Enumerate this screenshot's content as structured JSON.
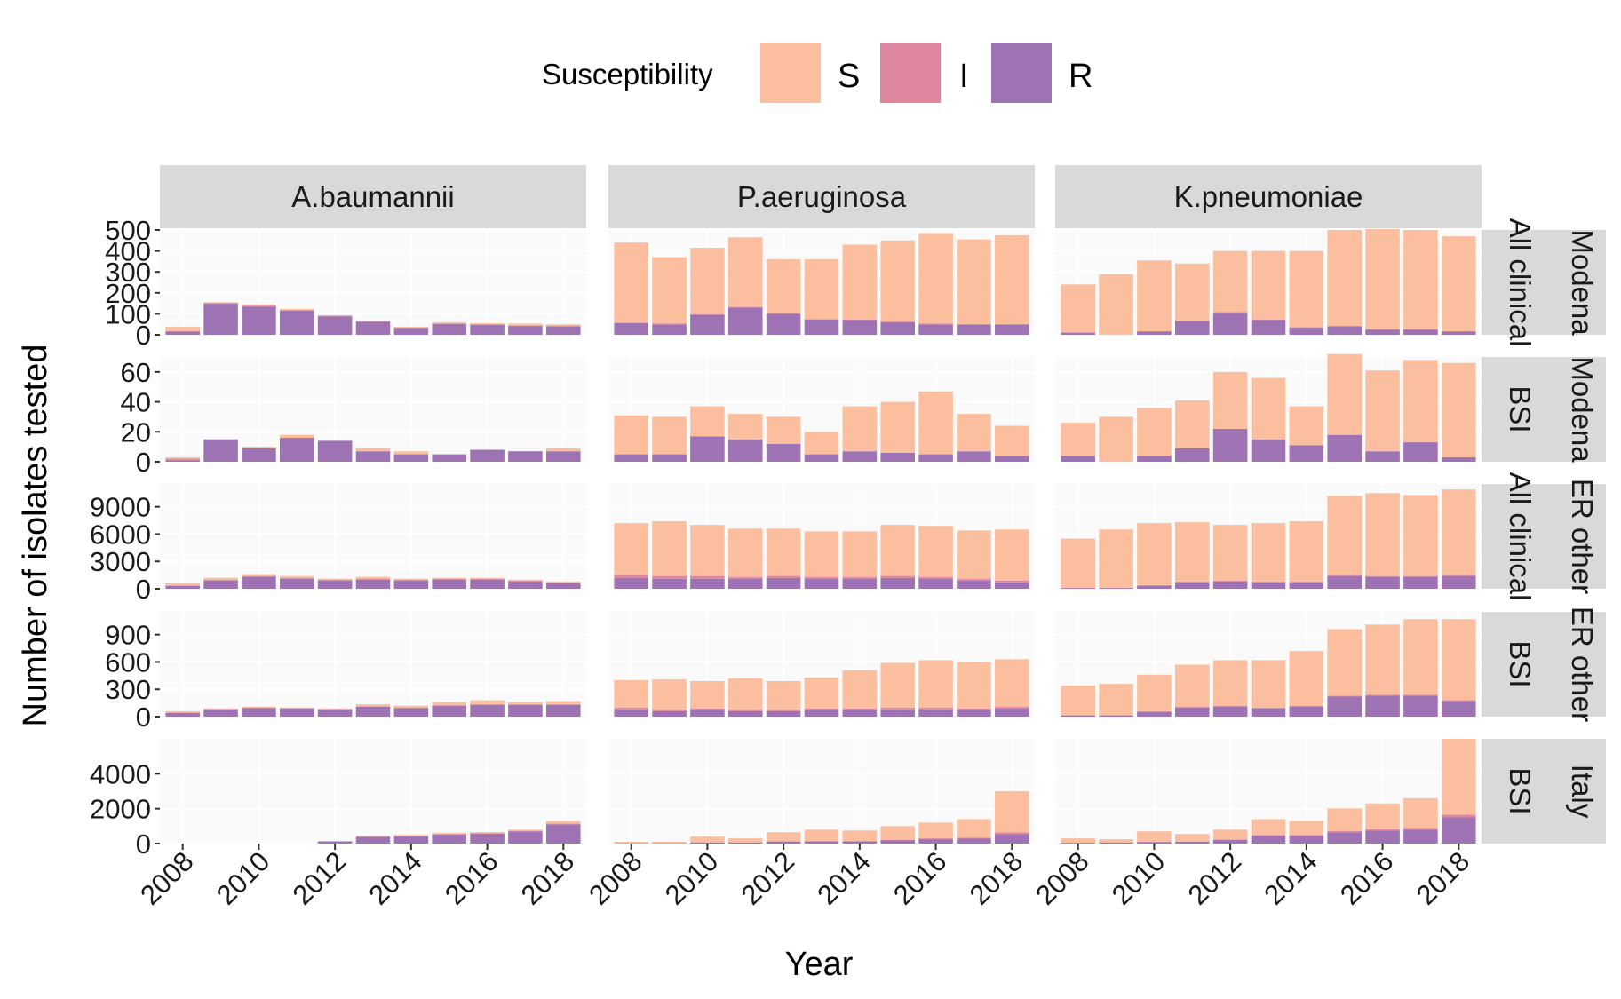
{
  "chart_data": {
    "type": "bar",
    "stacked": true,
    "facets": "grid",
    "xlabel": "Year",
    "ylabel": "Number of isolates tested",
    "x": [
      2008,
      2009,
      2010,
      2011,
      2012,
      2013,
      2014,
      2015,
      2016,
      2017,
      2018
    ],
    "x_ticks": [
      2008,
      2010,
      2012,
      2014,
      2016,
      2018
    ],
    "legend": {
      "title": "Susceptibility",
      "position": "top",
      "items": [
        {
          "key": "S",
          "label": "S",
          "color": "#fbbf9f"
        },
        {
          "key": "I",
          "label": "I",
          "color": "#de85a0"
        },
        {
          "key": "R",
          "label": "R",
          "color": "#9e73b3"
        }
      ]
    },
    "columns": [
      "A.baumannii",
      "P.aeruginosa",
      "K.pneumoniae"
    ],
    "rows": [
      {
        "strip": "Modena All clinical",
        "strip_outer": "Modena",
        "strip_inner": "All clinical",
        "ylim": [
          0,
          500
        ],
        "yticks": [
          0,
          100,
          200,
          300,
          400,
          500
        ],
        "ytick_labels": [
          "0",
          "100",
          "200",
          "300",
          "400",
          "500"
        ],
        "panels": [
          {
            "R": [
              15,
              148,
              135,
              115,
              88,
              62,
              33,
              52,
              48,
              42,
              40
            ],
            "I": [
              3,
              4,
              4,
              3,
              3,
              2,
              2,
              2,
              2,
              2,
              2
            ],
            "S": [
              20,
              3,
              6,
              5,
              2,
              2,
              3,
              6,
              5,
              9,
              8
            ]
          },
          {
            "R": [
              55,
              50,
              95,
              130,
              100,
              72,
              70,
              60,
              50,
              48,
              48
            ],
            "I": [
              3,
              3,
              3,
              3,
              3,
              3,
              3,
              3,
              3,
              3,
              3
            ],
            "S": [
              382,
              317,
              317,
              332,
              257,
              285,
              357,
              387,
              432,
              404,
              424
            ]
          },
          {
            "R": [
              10,
              0,
              15,
              65,
              105,
              70,
              35,
              40,
              25,
              25,
              15
            ],
            "I": [
              2,
              1,
              2,
              3,
              3,
              3,
              2,
              2,
              2,
              2,
              2
            ],
            "S": [
              228,
              288,
              338,
              272,
              292,
              327,
              363,
              458,
              478,
              473,
              453
            ]
          }
        ]
      },
      {
        "strip": "Modena BSI",
        "strip_outer": "Modena",
        "strip_inner": "BSI",
        "ylim": [
          0,
          70
        ],
        "yticks": [
          0,
          20,
          40,
          60
        ],
        "ytick_labels": [
          "0",
          "20",
          "40",
          "60"
        ],
        "panels": [
          {
            "R": [
              1,
              15,
              9,
              16,
              14,
              7,
              5,
              5,
              8,
              7,
              7
            ],
            "I": [
              1,
              0,
              0,
              0,
              0,
              0,
              0,
              0,
              0,
              0,
              0
            ],
            "S": [
              1,
              0,
              1,
              2,
              0,
              2,
              2,
              0,
              0,
              0,
              2
            ]
          },
          {
            "R": [
              5,
              5,
              17,
              15,
              12,
              5,
              7,
              6,
              5,
              7,
              4
            ],
            "I": [
              0,
              0,
              0,
              0,
              0,
              0,
              0,
              0,
              0,
              0,
              0
            ],
            "S": [
              26,
              25,
              20,
              17,
              18,
              15,
              30,
              34,
              42,
              25,
              20
            ]
          },
          {
            "R": [
              4,
              0,
              4,
              9,
              22,
              15,
              11,
              18,
              7,
              13,
              3
            ],
            "I": [
              0,
              0,
              0,
              0,
              0,
              0,
              0,
              0,
              0,
              0,
              0
            ],
            "S": [
              22,
              30,
              32,
              32,
              38,
              41,
              26,
              54,
              54,
              55,
              63
            ]
          }
        ]
      },
      {
        "strip": "ER other All clinical",
        "strip_outer": "ER other",
        "strip_inner": "All clinical",
        "ylim": [
          0,
          11500
        ],
        "yticks": [
          0,
          3000,
          6000,
          9000
        ],
        "ytick_labels": [
          "0",
          "3000",
          "6000",
          "9000"
        ],
        "panels": [
          {
            "R": [
              300,
              900,
              1300,
              1100,
              900,
              1000,
              900,
              1000,
              1000,
              800,
              600
            ],
            "I": [
              50,
              100,
              100,
              100,
              100,
              100,
              100,
              100,
              100,
              100,
              100
            ],
            "S": [
              250,
              200,
              200,
              200,
              100,
              200,
              100,
              100,
              100,
              100,
              100
            ]
          },
          {
            "R": [
              1200,
              1100,
              1100,
              1100,
              1200,
              1100,
              1100,
              1200,
              1100,
              900,
              700
            ],
            "I": [
              300,
              300,
              300,
              200,
              200,
              200,
              200,
              200,
              200,
              200,
              200
            ],
            "S": [
              5700,
              6000,
              5600,
              5300,
              5200,
              5000,
              5000,
              5600,
              5600,
              5300,
              5600
            ]
          },
          {
            "R": [
              50,
              50,
              300,
              700,
              800,
              700,
              700,
              1400,
              1300,
              1300,
              1400
            ],
            "I": [
              50,
              50,
              100,
              100,
              100,
              100,
              100,
              100,
              100,
              100,
              100
            ],
            "S": [
              5400,
              6400,
              6800,
              6500,
              6100,
              6400,
              6600,
              8700,
              9100,
              8900,
              9400
            ]
          }
        ]
      },
      {
        "strip": "ER other BSI",
        "strip_outer": "ER other",
        "strip_inner": "BSI",
        "ylim": [
          0,
          1150
        ],
        "yticks": [
          0,
          300,
          600,
          900
        ],
        "ytick_labels": [
          "0",
          "300",
          "600",
          "900"
        ],
        "panels": [
          {
            "R": [
              40,
              80,
              95,
              90,
              80,
              110,
              95,
              120,
              130,
              130,
              130
            ],
            "I": [
              5,
              5,
              5,
              5,
              5,
              5,
              5,
              5,
              5,
              5,
              5
            ],
            "S": [
              15,
              5,
              10,
              5,
              5,
              20,
              20,
              35,
              45,
              25,
              35
            ]
          },
          {
            "R": [
              80,
              60,
              70,
              60,
              60,
              70,
              70,
              80,
              80,
              70,
              90
            ],
            "I": [
              20,
              20,
              20,
              20,
              20,
              20,
              20,
              20,
              20,
              20,
              20
            ],
            "S": [
              300,
              330,
              300,
              340,
              310,
              340,
              420,
              490,
              520,
              510,
              520
            ]
          },
          {
            "R": [
              10,
              10,
              50,
              100,
              110,
              90,
              110,
              220,
              230,
              230,
              170
            ],
            "I": [
              5,
              5,
              10,
              10,
              10,
              10,
              10,
              10,
              10,
              10,
              10
            ],
            "S": [
              325,
              345,
              400,
              460,
              500,
              520,
              600,
              730,
              770,
              830,
              890
            ]
          }
        ]
      },
      {
        "strip": "Italy BSI",
        "strip_outer": "Italy",
        "strip_inner": "BSI",
        "ylim": [
          0,
          6000
        ],
        "yticks": [
          0,
          2000,
          4000
        ],
        "ytick_labels": [
          "0",
          "2000",
          "4000"
        ],
        "panels": [
          {
            "R": [
              0,
              0,
              0,
              0,
              120,
              380,
              420,
              520,
              560,
              700,
              1100
            ],
            "I": [
              0,
              0,
              0,
              0,
              10,
              20,
              20,
              30,
              30,
              30,
              40
            ],
            "S": [
              0,
              0,
              0,
              0,
              20,
              50,
              60,
              60,
              70,
              70,
              160
            ]
          },
          {
            "R": [
              20,
              20,
              60,
              60,
              100,
              120,
              120,
              180,
              250,
              280,
              550
            ],
            "I": [
              10,
              10,
              20,
              20,
              30,
              30,
              30,
              40,
              50,
              50,
              100
            ],
            "S": [
              70,
              70,
              320,
              220,
              520,
              650,
              600,
              780,
              900,
              1070,
              2350
            ]
          },
          {
            "R": [
              30,
              50,
              80,
              100,
              200,
              450,
              450,
              650,
              750,
              800,
              1500
            ],
            "I": [
              20,
              20,
              20,
              20,
              30,
              50,
              50,
              70,
              80,
              90,
              150
            ],
            "S": [
              250,
              180,
              600,
              430,
              570,
              900,
              800,
              1300,
              1470,
              1710,
              4350
            ]
          }
        ]
      }
    ]
  }
}
